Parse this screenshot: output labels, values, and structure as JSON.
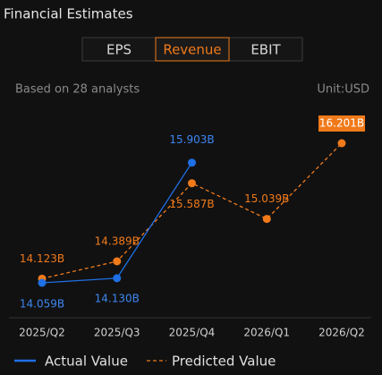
{
  "header": {
    "title": "Financial Estimates",
    "tabs": [
      "EPS",
      "Revenue",
      "EBIT"
    ],
    "selected_tab": 1
  },
  "subtitle": "Based on 28 analysts",
  "unit": "Unit:USD",
  "chart_data": {
    "type": "line",
    "categories": [
      "2025/Q2",
      "2025/Q3",
      "2025/Q4",
      "2026/Q1",
      "2026/Q2"
    ],
    "series": [
      {
        "name": "Actual Value",
        "color": "#1f6fe5",
        "values": [
          14.059,
          14.13,
          15.903,
          null,
          null
        ],
        "value_labels": [
          "14.059B",
          "14.130B",
          "15.903B",
          null,
          null
        ]
      },
      {
        "name": "Predicted Value",
        "color": "#f07a1a",
        "values": [
          14.123,
          14.389,
          15.587,
          15.039,
          16.201
        ],
        "value_labels": [
          "14.123B",
          "14.389B",
          "15.587B",
          "15.039B",
          "16.201B"
        ]
      }
    ]
  }
}
